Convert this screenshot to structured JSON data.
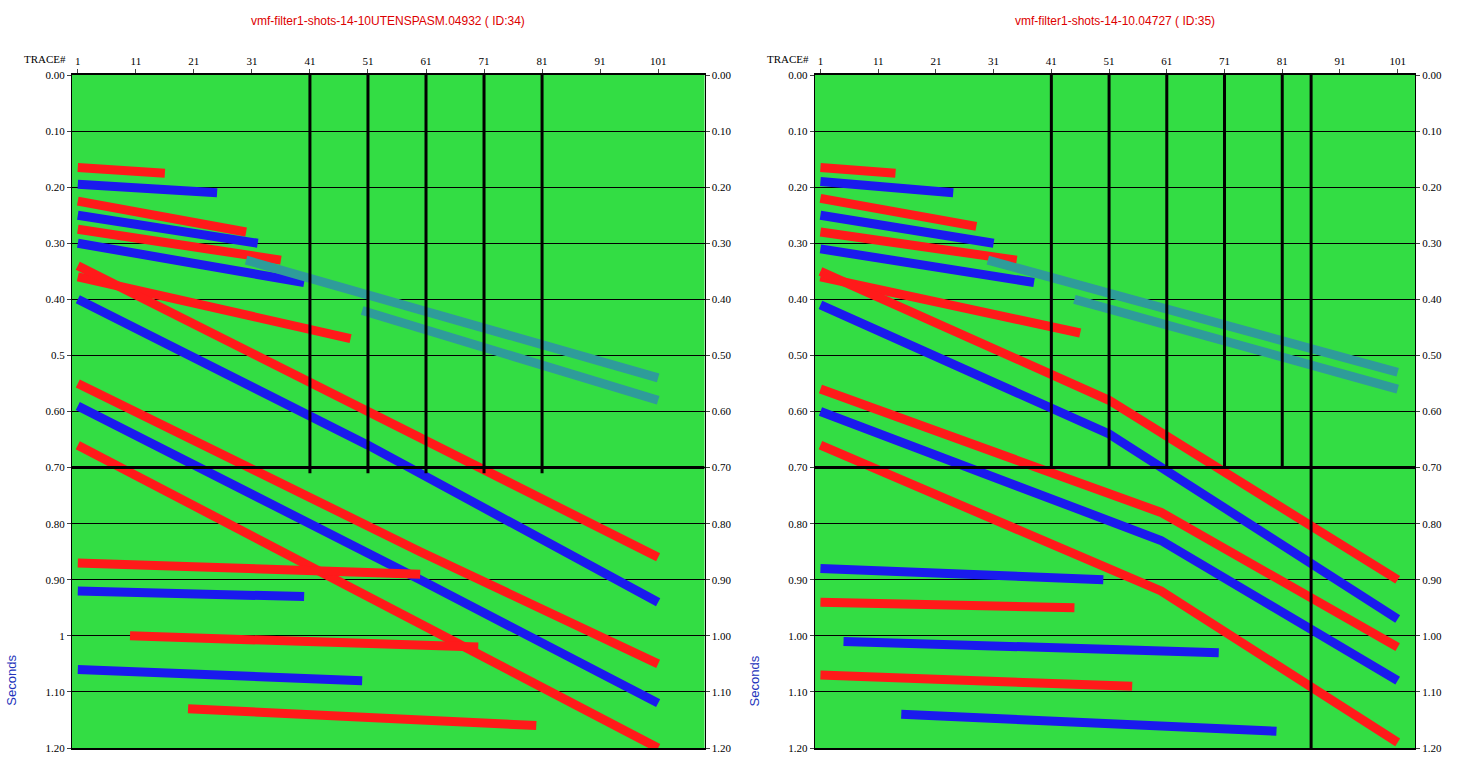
{
  "chart_data": [
    {
      "type": "line",
      "title": "vmf-filter1-shots-14-10UTENSPASM.04932 ( ID:34)",
      "xlabel": "TRACE#",
      "ylabel": "Seconds",
      "xlim": [
        0,
        109
      ],
      "xticks": [
        1,
        11,
        21,
        31,
        41,
        51,
        61,
        71,
        81,
        91,
        101
      ],
      "ylim": [
        1.2,
        0
      ],
      "yticks": [
        {
          "value": 0,
          "label": "0.00"
        },
        {
          "value": 0.1,
          "label": "0.10"
        },
        {
          "value": 0.2,
          "label": "0.20"
        },
        {
          "value": 0.3,
          "label": "0.30"
        },
        {
          "value": 0.4,
          "label": "0.40"
        },
        0.5,
        {
          "value": 0.6,
          "label": "0.60"
        },
        {
          "value": 0.7,
          "label": "0.70"
        },
        {
          "value": 0.8,
          "label": "0.80"
        },
        {
          "value": 0.9,
          "label": "0.90"
        },
        1,
        {
          "value": 1.1,
          "label": "1.10"
        },
        {
          "value": 1.2,
          "label": "1.20"
        }
      ],
      "y2lim": [
        1.2,
        0
      ],
      "y2ticks": [
        {
          "value": 0,
          "label": "0.00"
        },
        {
          "value": 0.1,
          "label": "0.10"
        },
        {
          "value": 0.2,
          "label": "0.20"
        },
        {
          "value": 0.3,
          "label": "0.30"
        },
        {
          "value": 0.4,
          "label": "0.40"
        },
        {
          "value": 0.5,
          "label": "0.50"
        },
        {
          "value": 0.6,
          "label": "0.60"
        },
        {
          "value": 0.7,
          "label": "0.70"
        },
        {
          "value": 0.8,
          "label": "0.80"
        },
        {
          "value": 0.9,
          "label": "0.90"
        },
        {
          "value": 1,
          "label": "1.00"
        },
        {
          "value": 1.1,
          "label": "1.10"
        },
        {
          "value": 1.2,
          "label": "1.20"
        }
      ],
      "grid": true,
      "series": [
        {
          "color": "#ff1a1a",
          "x": [
            1,
            16
          ],
          "values": [
            0.165,
            0.175
          ]
        },
        {
          "color": "#1a1aee",
          "x": [
            1,
            25
          ],
          "values": [
            0.195,
            0.21
          ]
        },
        {
          "color": "#ff1a1a",
          "x": [
            1,
            30
          ],
          "values": [
            0.225,
            0.28
          ]
        },
        {
          "color": "#1a1aee",
          "x": [
            1,
            32
          ],
          "values": [
            0.25,
            0.3
          ]
        },
        {
          "color": "#ff1a1a",
          "x": [
            1,
            36
          ],
          "values": [
            0.275,
            0.33
          ]
        },
        {
          "color": "#1a1aee",
          "x": [
            1,
            40
          ],
          "values": [
            0.3,
            0.37
          ]
        },
        {
          "color": "#2e9c9a",
          "x": [
            30,
            101
          ],
          "values": [
            0.33,
            0.54
          ]
        },
        {
          "color": "#2e9c9a",
          "x": [
            50,
            101
          ],
          "values": [
            0.42,
            0.58
          ]
        },
        {
          "color": "#ff1a1a",
          "x": [
            1,
            48
          ],
          "values": [
            0.36,
            0.47
          ]
        },
        {
          "color": "#ff1a1a",
          "x": [
            1,
            51,
            101
          ],
          "values": [
            0.34,
            0.6,
            0.86
          ]
        },
        {
          "color": "#1a1aee",
          "x": [
            1,
            51,
            101
          ],
          "values": [
            0.4,
            0.66,
            0.94
          ]
        },
        {
          "color": "#ff1a1a",
          "x": [
            1,
            60,
            101
          ],
          "values": [
            0.55,
            0.85,
            1.05
          ]
        },
        {
          "color": "#1a1aee",
          "x": [
            1,
            60,
            101
          ],
          "values": [
            0.59,
            0.9,
            1.12
          ]
        },
        {
          "color": "#ff1a1a",
          "x": [
            1,
            60,
            101
          ],
          "values": [
            0.66,
            0.98,
            1.2
          ]
        },
        {
          "color": "#ff1a1a",
          "x": [
            1,
            60
          ],
          "values": [
            0.87,
            0.89
          ]
        },
        {
          "color": "#1a1aee",
          "x": [
            1,
            40
          ],
          "values": [
            0.92,
            0.93
          ]
        },
        {
          "color": "#ff1a1a",
          "x": [
            10,
            70
          ],
          "values": [
            1.0,
            1.02
          ]
        },
        {
          "color": "#1a1aee",
          "x": [
            1,
            50
          ],
          "values": [
            1.06,
            1.08
          ]
        },
        {
          "color": "#ff1a1a",
          "x": [
            20,
            80
          ],
          "values": [
            1.13,
            1.16
          ]
        },
        {
          "color": "#000000",
          "x": [
            41,
            41
          ],
          "values": [
            0,
            0.71
          ]
        },
        {
          "color": "#000000",
          "x": [
            51,
            51
          ],
          "values": [
            0,
            0.71
          ]
        },
        {
          "color": "#000000",
          "x": [
            61,
            61
          ],
          "values": [
            0,
            0.71
          ]
        },
        {
          "color": "#000000",
          "x": [
            71,
            71
          ],
          "values": [
            0,
            0.71
          ]
        },
        {
          "color": "#000000",
          "x": [
            81,
            81
          ],
          "values": [
            0,
            0.71
          ]
        },
        {
          "color": "#000000",
          "x": [
            0,
            109
          ],
          "values": [
            0.7,
            0.7
          ]
        }
      ]
    },
    {
      "type": "line",
      "title": "vmf-filter1-shots-14-10.04727 ( ID:35)",
      "xlabel": "TRACE#",
      "ylabel": "Seconds",
      "xlim": [
        0,
        104
      ],
      "xticks": [
        1,
        11,
        21,
        31,
        41,
        51,
        61,
        71,
        81,
        91,
        101
      ],
      "ylim": [
        1.2,
        0
      ],
      "yticks": [
        {
          "value": 0,
          "label": "0.00"
        },
        {
          "value": 0.1,
          "label": "0.10"
        },
        {
          "value": 0.2,
          "label": "0.20"
        },
        {
          "value": 0.3,
          "label": "0.30"
        },
        {
          "value": 0.4,
          "label": "0.40"
        },
        {
          "value": 0.5,
          "label": "0.50"
        },
        {
          "value": 0.6,
          "label": "0.60"
        },
        {
          "value": 0.7,
          "label": "0.70"
        },
        {
          "value": 0.8,
          "label": "0.80"
        },
        {
          "value": 0.9,
          "label": "0.90"
        },
        {
          "value": 1,
          "label": "1.00"
        },
        {
          "value": 1.1,
          "label": "1.10"
        },
        {
          "value": 1.2,
          "label": "1.20"
        }
      ],
      "y2lim": [
        1.2,
        0
      ],
      "y2ticks": [
        {
          "value": 0,
          "label": "0.00"
        },
        {
          "value": 0.1,
          "label": "0.10"
        },
        {
          "value": 0.2,
          "label": "0.20"
        },
        {
          "value": 0.3,
          "label": "0.30"
        },
        {
          "value": 0.4,
          "label": "0.40"
        },
        {
          "value": 0.5,
          "label": "0.50"
        },
        {
          "value": 0.6,
          "label": "0.60"
        },
        {
          "value": 0.7,
          "label": "0.70"
        },
        {
          "value": 0.8,
          "label": "0.80"
        },
        {
          "value": 0.9,
          "label": "0.90"
        },
        {
          "value": 1,
          "label": "1.00"
        },
        {
          "value": 1.1,
          "label": "1.10"
        },
        {
          "value": 1.2,
          "label": "1.20"
        }
      ],
      "grid": true,
      "series": [
        {
          "color": "#ff1a1a",
          "x": [
            1,
            14
          ],
          "values": [
            0.165,
            0.175
          ]
        },
        {
          "color": "#1a1aee",
          "x": [
            1,
            24
          ],
          "values": [
            0.19,
            0.21
          ]
        },
        {
          "color": "#ff1a1a",
          "x": [
            1,
            28
          ],
          "values": [
            0.22,
            0.27
          ]
        },
        {
          "color": "#1a1aee",
          "x": [
            1,
            31
          ],
          "values": [
            0.25,
            0.3
          ]
        },
        {
          "color": "#ff1a1a",
          "x": [
            1,
            35
          ],
          "values": [
            0.28,
            0.33
          ]
        },
        {
          "color": "#1a1aee",
          "x": [
            1,
            38
          ],
          "values": [
            0.31,
            0.37
          ]
        },
        {
          "color": "#2e9c9a",
          "x": [
            30,
            101
          ],
          "values": [
            0.33,
            0.53
          ]
        },
        {
          "color": "#2e9c9a",
          "x": [
            45,
            101
          ],
          "values": [
            0.4,
            0.56
          ]
        },
        {
          "color": "#ff1a1a",
          "x": [
            1,
            46
          ],
          "values": [
            0.36,
            0.46
          ]
        },
        {
          "color": "#ff1a1a",
          "x": [
            1,
            51,
            101
          ],
          "values": [
            0.35,
            0.58,
            0.9
          ]
        },
        {
          "color": "#1a1aee",
          "x": [
            1,
            51,
            101
          ],
          "values": [
            0.41,
            0.64,
            0.97
          ]
        },
        {
          "color": "#ff1a1a",
          "x": [
            1,
            60,
            101
          ],
          "values": [
            0.56,
            0.78,
            1.02
          ]
        },
        {
          "color": "#1a1aee",
          "x": [
            1,
            60,
            101
          ],
          "values": [
            0.6,
            0.83,
            1.08
          ]
        },
        {
          "color": "#ff1a1a",
          "x": [
            1,
            60,
            101
          ],
          "values": [
            0.66,
            0.92,
            1.19
          ]
        },
        {
          "color": "#1a1aee",
          "x": [
            1,
            50
          ],
          "values": [
            0.88,
            0.9
          ]
        },
        {
          "color": "#ff1a1a",
          "x": [
            1,
            45
          ],
          "values": [
            0.94,
            0.95
          ]
        },
        {
          "color": "#1a1aee",
          "x": [
            5,
            70
          ],
          "values": [
            1.01,
            1.03
          ]
        },
        {
          "color": "#ff1a1a",
          "x": [
            1,
            55
          ],
          "values": [
            1.07,
            1.09
          ]
        },
        {
          "color": "#1a1aee",
          "x": [
            15,
            80
          ],
          "values": [
            1.14,
            1.17
          ]
        },
        {
          "color": "#000000",
          "x": [
            41,
            41
          ],
          "values": [
            0,
            0.7
          ]
        },
        {
          "color": "#000000",
          "x": [
            51,
            51
          ],
          "values": [
            0,
            0.7
          ]
        },
        {
          "color": "#000000",
          "x": [
            61,
            61
          ],
          "values": [
            0,
            0.7
          ]
        },
        {
          "color": "#000000",
          "x": [
            71,
            71
          ],
          "values": [
            0,
            0.7
          ]
        },
        {
          "color": "#000000",
          "x": [
            81,
            81
          ],
          "values": [
            0,
            0.7
          ]
        },
        {
          "color": "#000000",
          "x": [
            86,
            86
          ],
          "values": [
            0,
            1.2
          ]
        },
        {
          "color": "#000000",
          "x": [
            0,
            104
          ],
          "values": [
            0.7,
            0.7
          ]
        }
      ]
    }
  ]
}
